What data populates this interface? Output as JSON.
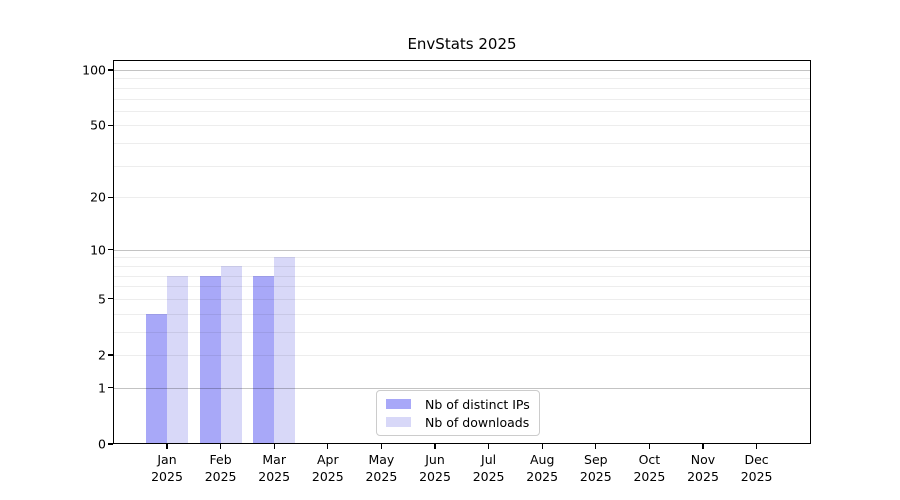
{
  "title": "EnvStats 2025",
  "chart_data": {
    "type": "bar",
    "title": "EnvStats 2025",
    "xlabel": "",
    "ylabel": "",
    "scale": "log1p",
    "ylim": [
      0,
      113.2
    ],
    "grid": true,
    "legend_position": "bottom-center",
    "year": "2025",
    "categories": [
      "Jan",
      "Feb",
      "Mar",
      "Apr",
      "May",
      "Jun",
      "Jul",
      "Aug",
      "Sep",
      "Oct",
      "Nov",
      "Dec"
    ],
    "series": [
      {
        "name": "Nb of distinct IPs",
        "color": "#a8a8f8",
        "values": [
          4,
          7,
          7,
          null,
          null,
          null,
          null,
          null,
          null,
          null,
          null,
          null
        ]
      },
      {
        "name": "Nb of downloads",
        "color": "#d8d8f8",
        "values": [
          7,
          8,
          9,
          null,
          null,
          null,
          null,
          null,
          null,
          null,
          null,
          null
        ]
      }
    ],
    "y_ticks": [
      0,
      1,
      2,
      5,
      10,
      20,
      50,
      100
    ],
    "y_major_grid": [
      1,
      10,
      100
    ],
    "y_minor_grid": [
      2,
      3,
      4,
      5,
      6,
      7,
      8,
      9,
      20,
      30,
      40,
      50,
      60,
      70,
      80,
      90
    ]
  },
  "colors": {
    "background": "#ffffff",
    "spine": "#000000",
    "text": "#000000",
    "legend_border": "#cccccc",
    "bar_distinct_ips": "#a8a8f8",
    "bar_downloads": "#d8d8f8"
  }
}
